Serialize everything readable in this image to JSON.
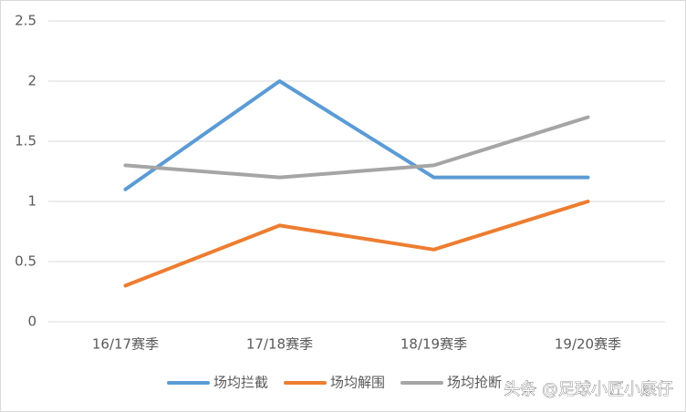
{
  "chart_data": {
    "type": "line",
    "categories": [
      "16/17赛季",
      "17/18赛季",
      "18/19赛季",
      "19/20赛季"
    ],
    "series": [
      {
        "name": "场均拦截",
        "color": "#5b9bd5",
        "values": [
          1.1,
          2,
          1.2,
          1.2
        ]
      },
      {
        "name": "场均解围",
        "color": "#ed7d31",
        "values": [
          0.3,
          0.8,
          0.6,
          1
        ]
      },
      {
        "name": "场均抢断",
        "color": "#a5a5a5",
        "values": [
          1.3,
          1.2,
          1.3,
          1.7
        ]
      }
    ],
    "ylim": [
      0,
      2.5
    ],
    "yticks": [
      0,
      0.5,
      1,
      1.5,
      2,
      2.5
    ],
    "grid": true,
    "legend": "bottom",
    "watermark": "头条 @足球小匠小康仔"
  }
}
